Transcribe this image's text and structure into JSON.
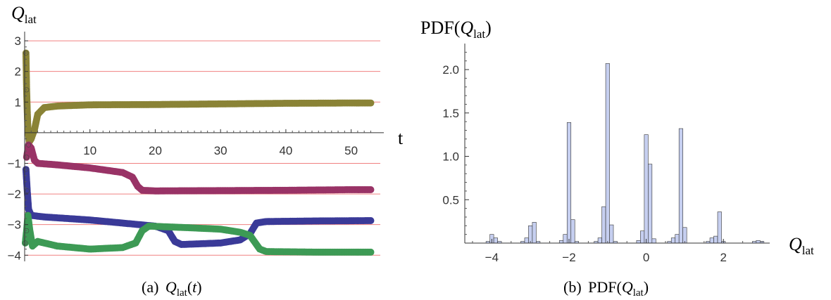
{
  "chart_data": [
    {
      "type": "scatter",
      "ylabel_main": "Q",
      "ylabel_sub": "lat",
      "xlabel": "t",
      "xlim": [
        0,
        55
      ],
      "ylim": [
        -4.2,
        3.3
      ],
      "x_ticks": [
        10,
        20,
        30,
        40,
        50
      ],
      "y_ticks": [
        -4,
        -3,
        -2,
        -1,
        1,
        2,
        3
      ],
      "grid_y": [
        -4,
        -3,
        -2,
        -1,
        1,
        2,
        3
      ],
      "grid_color": "#f08080",
      "caption_prefix": "(a)",
      "caption_tex": "Q_lat(t)",
      "series": [
        {
          "color": "#8a8336",
          "points": [
            [
              0.2,
              2.6
            ],
            [
              0.3,
              1.4
            ],
            [
              0.4,
              0.7
            ],
            [
              0.5,
              0.1
            ],
            [
              0.7,
              -0.3
            ],
            [
              1,
              -0.2
            ],
            [
              1.5,
              0.1
            ],
            [
              2,
              0.6
            ],
            [
              3,
              0.82
            ],
            [
              5,
              0.87
            ],
            [
              10,
              0.91
            ],
            [
              20,
              0.92
            ],
            [
              30,
              0.94
            ],
            [
              40,
              0.96
            ],
            [
              50,
              0.97
            ],
            [
              53,
              0.97
            ]
          ]
        },
        {
          "color": "#993366",
          "points": [
            [
              0.3,
              -0.8
            ],
            [
              0.6,
              -0.4
            ],
            [
              1,
              -0.5
            ],
            [
              1.5,
              -0.9
            ],
            [
              2,
              -1.0
            ],
            [
              5,
              -1.05
            ],
            [
              10,
              -1.15
            ],
            [
              15,
              -1.3
            ],
            [
              16.5,
              -1.45
            ],
            [
              17.3,
              -1.75
            ],
            [
              18,
              -1.88
            ],
            [
              20,
              -1.9
            ],
            [
              30,
              -1.89
            ],
            [
              40,
              -1.88
            ],
            [
              50,
              -1.86
            ],
            [
              53,
              -1.86
            ]
          ]
        },
        {
          "color": "#3a3a98",
          "points": [
            [
              0.2,
              -1.2
            ],
            [
              0.4,
              -1.9
            ],
            [
              0.6,
              -2.5
            ],
            [
              1,
              -2.7
            ],
            [
              3,
              -2.75
            ],
            [
              10,
              -2.85
            ],
            [
              15,
              -2.95
            ],
            [
              20,
              -3.05
            ],
            [
              22,
              -3.2
            ],
            [
              23,
              -3.55
            ],
            [
              24,
              -3.65
            ],
            [
              30,
              -3.6
            ],
            [
              33,
              -3.5
            ],
            [
              34.5,
              -3.3
            ],
            [
              35.5,
              -2.95
            ],
            [
              37,
              -2.9
            ],
            [
              45,
              -2.88
            ],
            [
              53,
              -2.87
            ]
          ]
        },
        {
          "color": "#3d9a55",
          "points": [
            [
              0.1,
              -3.6
            ],
            [
              0.3,
              -3.2
            ],
            [
              0.5,
              -2.7
            ],
            [
              0.8,
              -3.2
            ],
            [
              1.2,
              -3.7
            ],
            [
              2,
              -3.55
            ],
            [
              3,
              -3.6
            ],
            [
              5,
              -3.7
            ],
            [
              10,
              -3.8
            ],
            [
              15,
              -3.75
            ],
            [
              17,
              -3.6
            ],
            [
              18,
              -3.2
            ],
            [
              19,
              -3.05
            ],
            [
              25,
              -3.1
            ],
            [
              30,
              -3.15
            ],
            [
              33,
              -3.25
            ],
            [
              34.5,
              -3.35
            ],
            [
              35,
              -3.5
            ],
            [
              36,
              -3.8
            ],
            [
              37,
              -3.88
            ],
            [
              45,
              -3.9
            ],
            [
              53,
              -3.9
            ]
          ]
        }
      ]
    },
    {
      "type": "bar",
      "title_main": "PDF",
      "title_var": "Q",
      "title_sub": "lat",
      "xlabel_main": "Q",
      "xlabel_sub": "lat",
      "xlim": [
        -4.7,
        3.2
      ],
      "ylim": [
        0,
        2.3
      ],
      "x_ticks": [
        -4,
        -2,
        0,
        2
      ],
      "x_tick_labels": [
        "−4",
        "−2",
        "0",
        "2"
      ],
      "y_ticks": [
        0.5,
        1.0,
        1.5,
        2.0
      ],
      "y_tick_labels": [
        "0.5",
        "1.0",
        "1.5",
        "2.0"
      ],
      "bar_width": 0.1,
      "bar_color": "#c6cff0",
      "caption_prefix": "(b)",
      "caption_tex": "PDF(Q_lat)",
      "bars": [
        [
          -4.1,
          0.02
        ],
        [
          -4.0,
          0.1
        ],
        [
          -3.9,
          0.06
        ],
        [
          -3.8,
          0.02
        ],
        [
          -3.2,
          0.02
        ],
        [
          -3.1,
          0.06
        ],
        [
          -3.0,
          0.2
        ],
        [
          -2.9,
          0.24
        ],
        [
          -2.8,
          0.02
        ],
        [
          -2.2,
          0.03
        ],
        [
          -2.1,
          0.1
        ],
        [
          -2.0,
          1.39
        ],
        [
          -1.9,
          0.27
        ],
        [
          -1.8,
          0.02
        ],
        [
          -1.3,
          0.02
        ],
        [
          -1.2,
          0.06
        ],
        [
          -1.1,
          0.42
        ],
        [
          -1.0,
          2.07
        ],
        [
          -0.9,
          0.21
        ],
        [
          -0.8,
          0.02
        ],
        [
          -0.2,
          0.03
        ],
        [
          -0.1,
          0.14
        ],
        [
          0.0,
          1.25
        ],
        [
          0.1,
          0.91
        ],
        [
          0.2,
          0.05
        ],
        [
          0.6,
          0.02
        ],
        [
          0.7,
          0.06
        ],
        [
          0.8,
          0.1
        ],
        [
          0.9,
          1.32
        ],
        [
          1.0,
          0.18
        ],
        [
          1.6,
          0.02
        ],
        [
          1.7,
          0.06
        ],
        [
          1.8,
          0.08
        ],
        [
          1.9,
          0.36
        ],
        [
          2.0,
          0.02
        ],
        [
          2.8,
          0.02
        ],
        [
          2.9,
          0.03
        ],
        [
          3.0,
          0.02
        ]
      ]
    }
  ]
}
